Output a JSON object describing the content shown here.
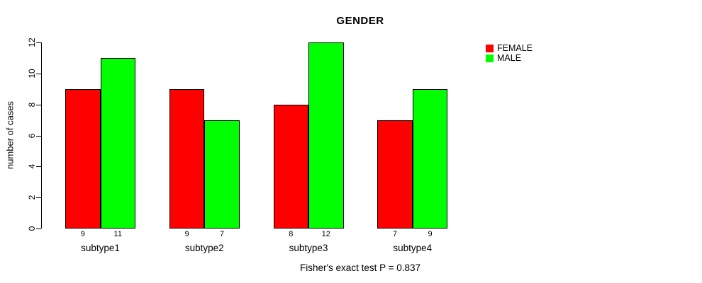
{
  "chart_data": {
    "type": "bar",
    "title": "GENDER",
    "ylabel": "number of cases",
    "xlabel": "",
    "caption": "Fisher's exact test P = 0.837",
    "categories": [
      "subtype1",
      "subtype2",
      "subtype3",
      "subtype4"
    ],
    "series": [
      {
        "name": "FEMALE",
        "color": "#ff0000",
        "values": [
          9,
          9,
          8,
          7
        ]
      },
      {
        "name": "MALE",
        "color": "#00ff00",
        "values": [
          11,
          7,
          12,
          9
        ]
      }
    ],
    "yticks": [
      0,
      2,
      4,
      6,
      8,
      10,
      12
    ],
    "ylim": [
      0,
      12
    ],
    "grid": false,
    "bar_border_color": "#000000",
    "value_labels_shown": true,
    "legend_position": "right-outside"
  }
}
